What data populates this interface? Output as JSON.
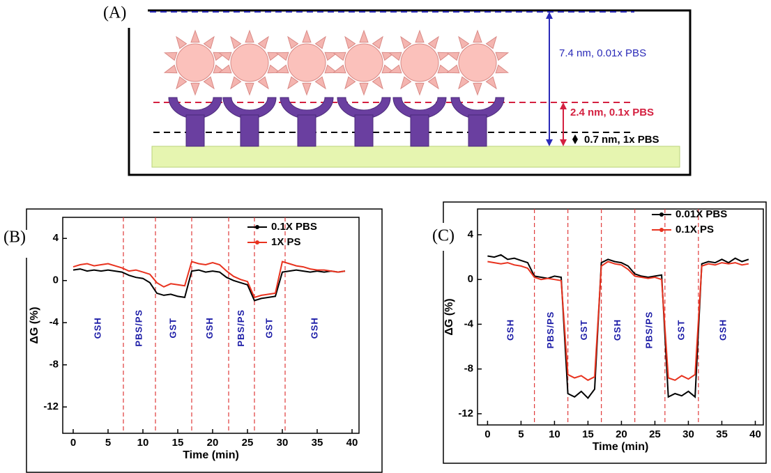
{
  "diagram": {
    "panel_label": "(A)",
    "labels": [
      "7.4 nm, 0.01x PBS",
      "2.4 nm, 0.1x PBS",
      "0.7 nm, 1x PBS"
    ]
  },
  "chart_data": [
    {
      "type": "line",
      "panel_label": "(B)",
      "xlabel": "Time (min)",
      "ylabel": "ΔG (%)",
      "x": [
        0,
        1,
        2,
        3,
        4,
        5,
        6,
        7,
        8,
        9,
        10,
        11,
        12,
        13,
        14,
        15,
        16,
        17,
        18,
        19,
        20,
        21,
        22,
        23,
        24,
        25,
        26,
        27,
        28,
        29,
        30,
        31,
        32,
        33,
        34,
        35,
        36,
        37,
        38,
        39
      ],
      "series": [
        {
          "name": "0.1X PBS",
          "color": "#000000",
          "values": [
            1.0,
            1.1,
            0.9,
            1.0,
            0.9,
            1.0,
            0.9,
            0.8,
            0.5,
            0.3,
            0.2,
            -0.2,
            -1.2,
            -1.4,
            -1.3,
            -1.5,
            -1.6,
            0.9,
            1.0,
            0.8,
            0.9,
            0.8,
            0.3,
            0.0,
            -0.2,
            -0.4,
            -1.9,
            -1.7,
            -1.6,
            -1.5,
            0.8,
            0.9,
            1.0,
            0.9,
            0.8,
            0.9,
            0.8,
            0.9,
            0.8,
            0.9
          ]
        },
        {
          "name": "1X PS",
          "color": "#e8321e",
          "values": [
            1.3,
            1.5,
            1.6,
            1.4,
            1.5,
            1.6,
            1.4,
            1.2,
            0.9,
            1.0,
            0.8,
            0.6,
            -0.2,
            -0.6,
            -0.3,
            -0.4,
            -0.5,
            1.8,
            1.6,
            1.5,
            1.7,
            1.5,
            0.9,
            0.4,
            0.1,
            -0.1,
            -1.6,
            -1.4,
            -1.3,
            -1.2,
            1.8,
            1.6,
            1.4,
            1.3,
            1.1,
            1.0,
            1.0,
            0.9,
            0.8,
            0.9
          ]
        }
      ],
      "markers": [
        7.2,
        11.8,
        17,
        22.3,
        26,
        30.4
      ],
      "regions": [
        "GSH",
        "PBS/PS",
        "GST",
        "GSH",
        "PBS/PS",
        "GST",
        "GSH"
      ],
      "xlim": [
        -1.5,
        41
      ],
      "xticks": [
        0,
        5,
        10,
        15,
        20,
        25,
        30,
        35,
        40
      ],
      "ylim": [
        -14.5,
        6
      ],
      "yticks": [
        -12,
        -8,
        -4,
        0,
        4
      ],
      "legend": "upper right"
    },
    {
      "type": "line",
      "panel_label": "(C)",
      "xlabel": "Time (min)",
      "ylabel": "ΔG (%)",
      "x": [
        0,
        1,
        2,
        3,
        4,
        5,
        6,
        7,
        8,
        9,
        10,
        11,
        12,
        13,
        14,
        15,
        16,
        17,
        18,
        19,
        20,
        21,
        22,
        23,
        24,
        25,
        26,
        27,
        28,
        29,
        30,
        31,
        32,
        33,
        34,
        35,
        36,
        37,
        38,
        39
      ],
      "series": [
        {
          "name": "0.01X PBS",
          "color": "#000000",
          "values": [
            2.1,
            2.0,
            2.2,
            1.8,
            1.9,
            1.7,
            1.5,
            0.3,
            0.2,
            0.1,
            0.3,
            0.2,
            -10.2,
            -10.5,
            -10.0,
            -10.6,
            -9.8,
            1.5,
            1.8,
            1.6,
            1.5,
            1.2,
            0.5,
            0.3,
            0.2,
            0.3,
            0.4,
            -10.5,
            -10.2,
            -10.4,
            -10.0,
            -10.5,
            1.4,
            1.6,
            1.5,
            1.8,
            1.5,
            1.9,
            1.6,
            1.8
          ]
        },
        {
          "name": "0.1X PS",
          "color": "#e8321e",
          "values": [
            1.6,
            1.5,
            1.4,
            1.5,
            1.3,
            1.2,
            1.0,
            0.2,
            0.0,
            0.1,
            0.0,
            -0.1,
            -8.5,
            -8.8,
            -8.6,
            -9.0,
            -8.7,
            1.2,
            1.6,
            1.4,
            1.3,
            0.9,
            0.3,
            0.2,
            0.1,
            0.2,
            0.0,
            -8.8,
            -9.0,
            -8.6,
            -8.9,
            -8.5,
            1.2,
            1.4,
            1.3,
            1.5,
            1.4,
            1.5,
            1.3,
            1.4
          ]
        }
      ],
      "markers": [
        7,
        12,
        17,
        22,
        26.5,
        31.5
      ],
      "regions": [
        "GSH",
        "PBS/PS",
        "GST",
        "GSH",
        "PBS/PS",
        "GST",
        "GSH"
      ],
      "xlim": [
        -1.5,
        41.2
      ],
      "xticks": [
        0,
        5,
        10,
        15,
        20,
        25,
        30,
        35,
        40
      ],
      "ylim": [
        -13,
        6.3
      ],
      "yticks": [
        -12,
        -8,
        -4,
        0,
        4
      ],
      "legend": "upper right"
    }
  ]
}
